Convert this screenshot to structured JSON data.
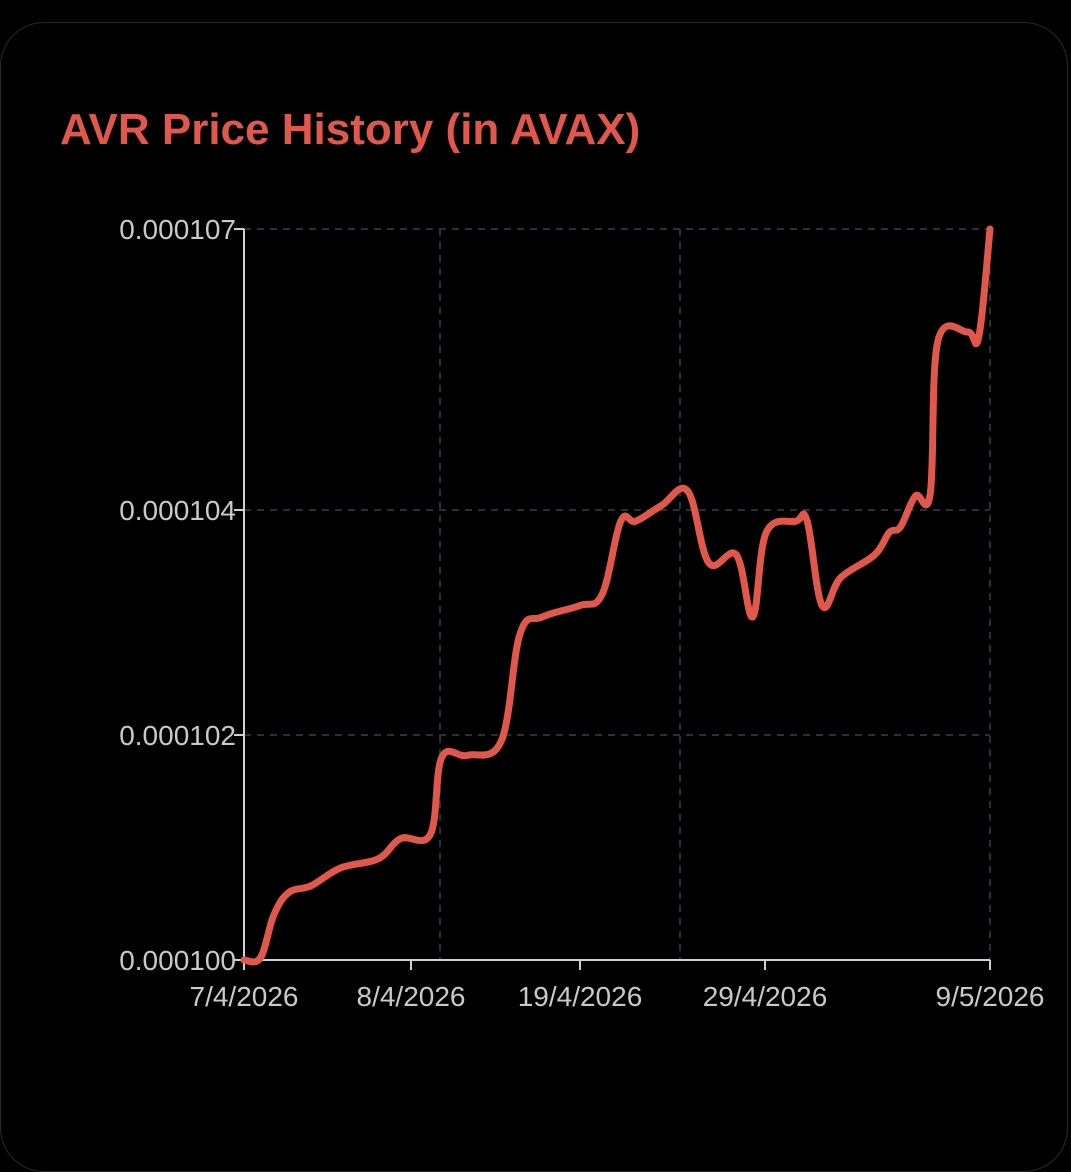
{
  "colors": {
    "accent": "#e0574c",
    "axis": "#d0d0d0",
    "grid": "#3a3f4e",
    "tick_text": "#c9c9c9"
  },
  "chart_data": {
    "type": "line",
    "title": "AVR Price History (in AVAX)",
    "xlabel": "",
    "ylabel": "",
    "grid": true,
    "legend": "none",
    "x_ticks": [
      "7/4/2026",
      "8/4/2026",
      "19/4/2026",
      "29/4/2026",
      "9/5/2026"
    ],
    "y_ticks": [
      "0.000100",
      "0.000102",
      "0.000104",
      "0.000107"
    ],
    "series": [
      {
        "points": [
          [
            0.0,
            0.0001
          ],
          [
            0.022,
            0.00010002
          ],
          [
            0.04,
            0.0001004
          ],
          [
            0.06,
            0.0001006
          ],
          [
            0.09,
            0.00010066
          ],
          [
            0.13,
            0.00010082
          ],
          [
            0.18,
            0.0001009
          ],
          [
            0.21,
            0.00010108
          ],
          [
            0.25,
            0.00010112
          ],
          [
            0.265,
            0.0001018
          ],
          [
            0.3,
            0.00010182
          ],
          [
            0.345,
            0.00010195
          ],
          [
            0.37,
            0.0001029
          ],
          [
            0.4,
            0.00010305
          ],
          [
            0.45,
            0.00010315
          ],
          [
            0.48,
            0.00010325
          ],
          [
            0.505,
            0.0001039
          ],
          [
            0.525,
            0.0001039
          ],
          [
            0.56,
            0.00010405
          ],
          [
            0.595,
            0.0001042
          ],
          [
            0.623,
            0.00010353
          ],
          [
            0.66,
            0.0001036
          ],
          [
            0.682,
            0.00010305
          ],
          [
            0.7,
            0.0001038
          ],
          [
            0.74,
            0.0001039
          ],
          [
            0.755,
            0.0001039
          ],
          [
            0.775,
            0.00010315
          ],
          [
            0.8,
            0.0001034
          ],
          [
            0.845,
            0.0001036
          ],
          [
            0.865,
            0.0001038
          ],
          [
            0.88,
            0.00010385
          ],
          [
            0.9,
            0.00010415
          ],
          [
            0.92,
            0.00010418
          ],
          [
            0.93,
            0.0001058
          ],
          [
            0.97,
            0.0001059
          ],
          [
            0.985,
            0.00010585
          ],
          [
            1.0,
            0.000107
          ]
        ]
      }
    ]
  }
}
